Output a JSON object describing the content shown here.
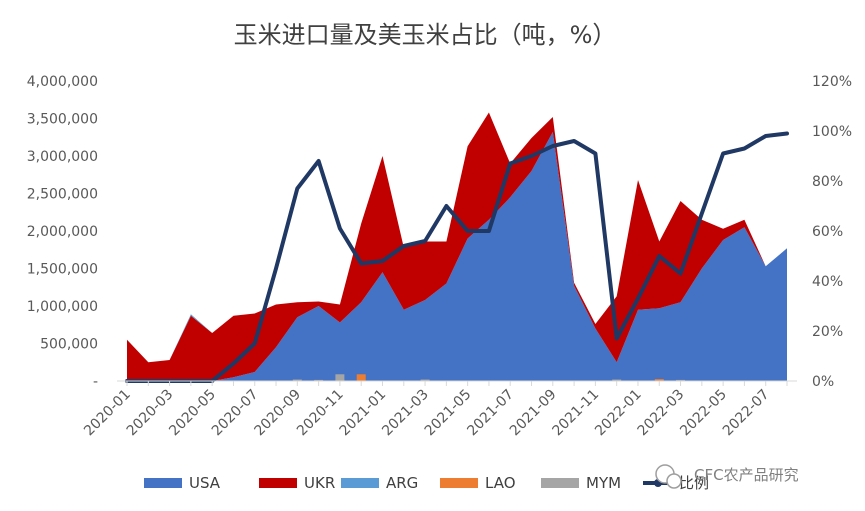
{
  "chart_data": {
    "type": "area",
    "title": "玉米进口量及美玉米占比（吨，%）",
    "y_left": {
      "min": 0,
      "max": 4000000,
      "step": 500000,
      "tick_labels": [
        "-",
        "500,000",
        "1,000,000",
        "1,500,000",
        "2,000,000",
        "2,500,000",
        "3,000,000",
        "3,500,000",
        "4,000,000"
      ]
    },
    "y_right": {
      "min": 0,
      "max": 120,
      "step": 20,
      "tick_labels": [
        "0%",
        "20%",
        "40%",
        "60%",
        "80%",
        "100%",
        "120%"
      ]
    },
    "x": [
      "2020-01",
      "2020-02",
      "2020-03",
      "2020-04",
      "2020-05",
      "2020-06",
      "2020-07",
      "2020-08",
      "2020-09",
      "2020-10",
      "2020-11",
      "2020-12",
      "2021-01",
      "2021-02",
      "2021-03",
      "2021-04",
      "2021-05",
      "2021-06",
      "2021-07",
      "2021-08",
      "2021-09",
      "2021-10",
      "2021-11",
      "2021-12",
      "2022-01",
      "2022-02",
      "2022-03",
      "2022-04",
      "2022-05",
      "2022-06",
      "2022-07",
      "2022-08"
    ],
    "x_tick_labels": [
      "2020-01",
      "2020-03",
      "2020-05",
      "2020-07",
      "2020-09",
      "2020-11",
      "2021-01",
      "2021-03",
      "2021-05",
      "2021-07",
      "2021-09",
      "2021-11",
      "2022-01",
      "2022-03",
      "2022-05",
      "2022-07"
    ],
    "series": [
      {
        "name": "USA",
        "kind": "stacked-area",
        "color": "#4472c4",
        "values": [
          0,
          0,
          0,
          0,
          0,
          50000,
          120000,
          450000,
          850000,
          1000000,
          780000,
          1050000,
          1450000,
          950000,
          1080000,
          1300000,
          1900000,
          2150000,
          2450000,
          2800000,
          3320000,
          1270000,
          700000,
          250000,
          950000,
          970000,
          1050000,
          1500000,
          1880000,
          2050000,
          1530000,
          1770000
        ]
      },
      {
        "name": "UKR",
        "kind": "stacked-area",
        "color": "#c00000",
        "values": [
          550000,
          250000,
          280000,
          870000,
          640000,
          820000,
          780000,
          570000,
          200000,
          60000,
          240000,
          1050000,
          1550000,
          830000,
          780000,
          560000,
          1230000,
          1430000,
          450000,
          440000,
          200000,
          40000,
          60000,
          880000,
          1730000,
          890000,
          1350000,
          650000,
          150000,
          100000,
          0,
          0
        ]
      },
      {
        "name": "ARG",
        "kind": "stacked-area",
        "color": "#5b9bd5",
        "values": [
          0,
          0,
          0,
          20000,
          0,
          0,
          0,
          0,
          0,
          0,
          0,
          0,
          0,
          0,
          0,
          0,
          0,
          0,
          0,
          0,
          0,
          0,
          0,
          0,
          0,
          0,
          0,
          0,
          0,
          0,
          0,
          0
        ]
      },
      {
        "name": "LAO",
        "kind": "bar",
        "color": "#ed7d31",
        "values": [
          0,
          0,
          0,
          0,
          0,
          0,
          0,
          0,
          0,
          0,
          0,
          90000,
          0,
          0,
          0,
          0,
          0,
          0,
          0,
          0,
          0,
          0,
          0,
          0,
          0,
          25000,
          0,
          0,
          0,
          0,
          0,
          0
        ]
      },
      {
        "name": "MYM",
        "kind": "bar",
        "color": "#a5a5a5",
        "values": [
          0,
          0,
          0,
          0,
          0,
          0,
          0,
          0,
          20000,
          15000,
          90000,
          0,
          0,
          0,
          20000,
          0,
          0,
          0,
          0,
          0,
          0,
          0,
          0,
          20000,
          0,
          0,
          15000,
          0,
          0,
          0,
          0,
          0
        ]
      },
      {
        "name": "比例",
        "kind": "line",
        "axis": "right",
        "color": "#203864",
        "values": [
          0,
          0,
          0,
          0,
          0,
          7,
          15,
          45,
          77,
          88,
          61,
          47,
          48,
          54,
          56,
          70,
          60,
          60,
          87,
          90,
          94,
          96,
          91,
          17,
          33,
          50,
          43,
          67,
          91,
          93,
          98,
          99
        ]
      }
    ],
    "legend_position": "bottom",
    "grid": false
  },
  "watermark": {
    "text": "CFC农产品研究"
  }
}
